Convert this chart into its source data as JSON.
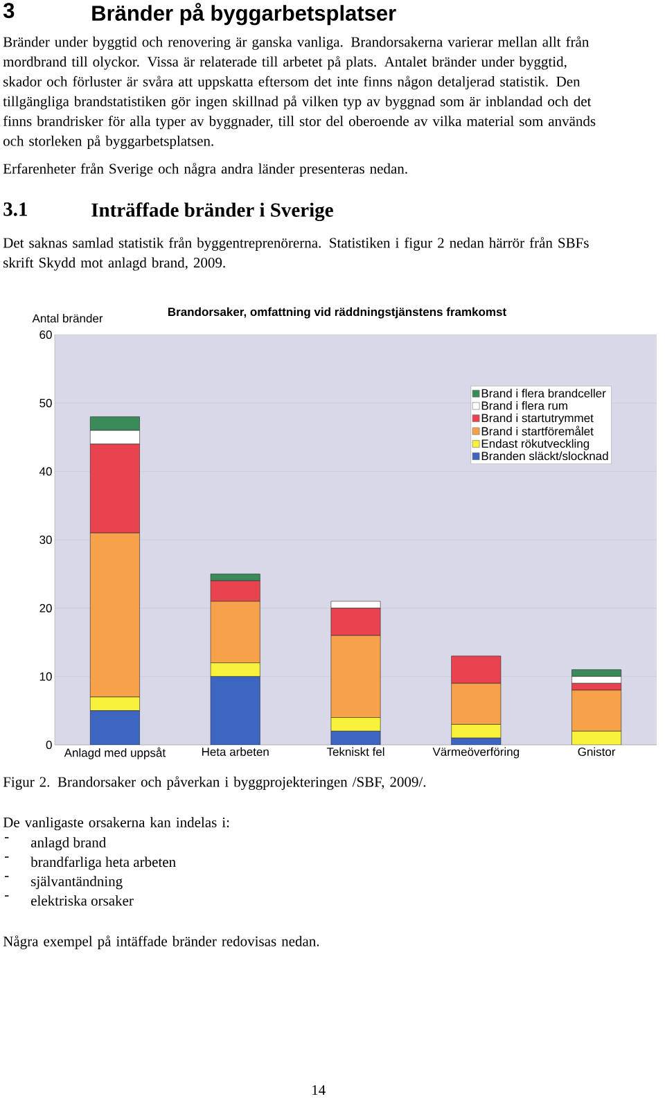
{
  "chart_data": {
    "type": "bar",
    "title": "Brandorsaker, omfattning vid räddningstjänstens framkomst",
    "ylabel": "Antal bränder",
    "categories": [
      "Anlagd med uppsåt",
      "Heta arbeten",
      "Tekniskt fel",
      "Värmeöverföring",
      "Gnistor"
    ],
    "stacked": true,
    "ylim": [
      0,
      60
    ],
    "yticks": [
      0,
      10,
      20,
      30,
      40,
      50,
      60
    ],
    "grid": "y",
    "legend": "top right",
    "series": [
      {
        "name": "Branden släckt/slocknad",
        "color": "#3c66c0",
        "values": [
          5,
          10,
          2,
          1,
          0
        ]
      },
      {
        "name": "Endast rökutveckling",
        "color": "#f8f23c",
        "values": [
          2,
          2,
          2,
          2,
          2
        ]
      },
      {
        "name": "Brand i startföremålet",
        "color": "#f7a14a",
        "values": [
          24,
          9,
          12,
          6,
          6
        ]
      },
      {
        "name": "Brand i startutrymmet",
        "color": "#e8434f",
        "values": [
          13,
          3,
          4,
          4,
          1
        ]
      },
      {
        "name": "Brand i flera rum",
        "color": "#ffffff",
        "values": [
          2,
          0,
          1,
          0,
          1
        ]
      },
      {
        "name": "Brand i flera brandceller",
        "color": "#3a8a5a",
        "values": [
          2,
          1,
          0,
          0,
          1
        ]
      }
    ],
    "annotations": [
      "3",
      "Bränder på byggarbetsplatser",
      "Bränder under byggtid och renovering är ganska vanliga.  Brandorsakerna varierar mellan allt från mordbrand till olyckor. Vissa är relaterade till arbetet på plats. Antalet bränder under byggtid, skador och förluster är svåra att uppskatta eftersom det inte finns någon detaljerad statistik. Den tillgängliga brandstatistiken gör ingen skillnad på vilken typ av byggnad som är inblandad och det finns brandrisker för alla typer av byggnader, till stor del oberoende av vilka material som används och storleken på byggarbetsplatsen.",
      "Erfarenheter från Sverige och några andra länder presenteras nedan.",
      "3.1",
      "Inträffade bränder  i Sverige",
      "Det saknas samlad statistik från byggentreprenörerna. Statistiken i figur 2 nedan härrör från SBFs skrift Skydd mot anlagd brand, 2009.",
      "Figur 2. Brandorsaker och påverkan i byggprojekteringen /SBF, 2009/.",
      "De vanligaste orsakerna kan indelas i:",
      "-",
      "anlagd brand",
      "-",
      "brandfarliga heta arbeten",
      "-",
      "självantändning",
      "-",
      "elektriska orsaker",
      "Några exempel på intäffade bränder redovisas nedan.",
      "14"
    ]
  }
}
